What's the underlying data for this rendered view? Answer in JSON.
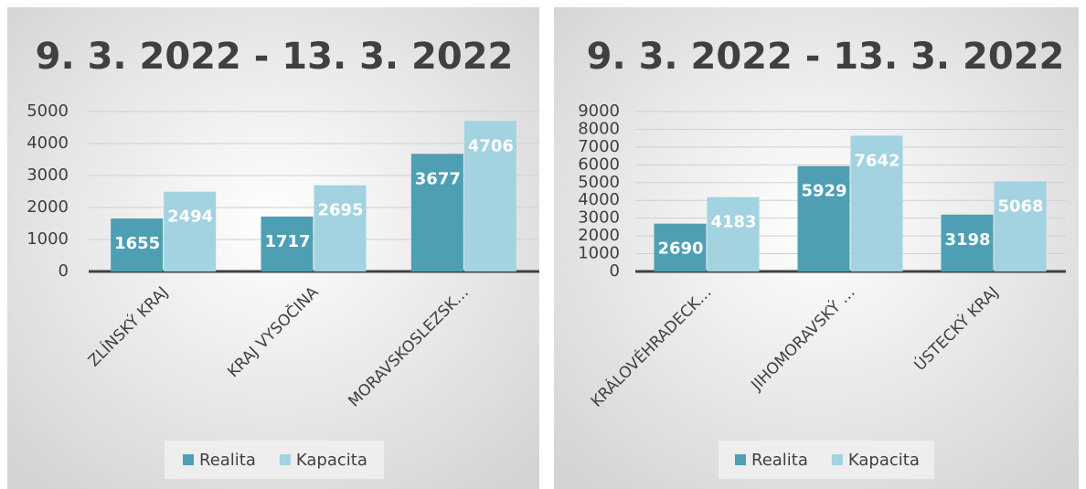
{
  "chart_data": [
    {
      "type": "bar",
      "title": "9. 3. 2022 - 13. 3. 2022",
      "categories": [
        "ZLÍNSKÝ KRAJ",
        "KRAJ VYSOČINA",
        "MORAVSKOSLEZSK…"
      ],
      "series": [
        {
          "name": "Realita",
          "color": "#4e9fb3",
          "values": [
            1655,
            1717,
            3677
          ]
        },
        {
          "name": "Kapacita",
          "color": "#a3d2e0",
          "values": [
            2494,
            2695,
            4706
          ]
        }
      ],
      "ylim": [
        0,
        5000
      ],
      "yticks": [
        0,
        1000,
        2000,
        3000,
        4000,
        5000
      ],
      "grid": true,
      "legend": "bottom"
    },
    {
      "type": "bar",
      "title": "9. 3. 2022 - 13. 3. 2022",
      "categories": [
        "KRÁLOVÉHRADECK…",
        "JIHOMORAVSKÝ …",
        "ÚSTECKÝ KRAJ"
      ],
      "series": [
        {
          "name": "Realita",
          "color": "#4e9fb3",
          "values": [
            2690,
            5929,
            3198
          ]
        },
        {
          "name": "Kapacita",
          "color": "#a3d2e0",
          "values": [
            4183,
            7642,
            5068
          ]
        }
      ],
      "ylim": [
        0,
        9000
      ],
      "yticks": [
        0,
        1000,
        2000,
        3000,
        4000,
        5000,
        6000,
        7000,
        8000,
        9000
      ],
      "grid": true,
      "legend": "bottom"
    }
  ]
}
